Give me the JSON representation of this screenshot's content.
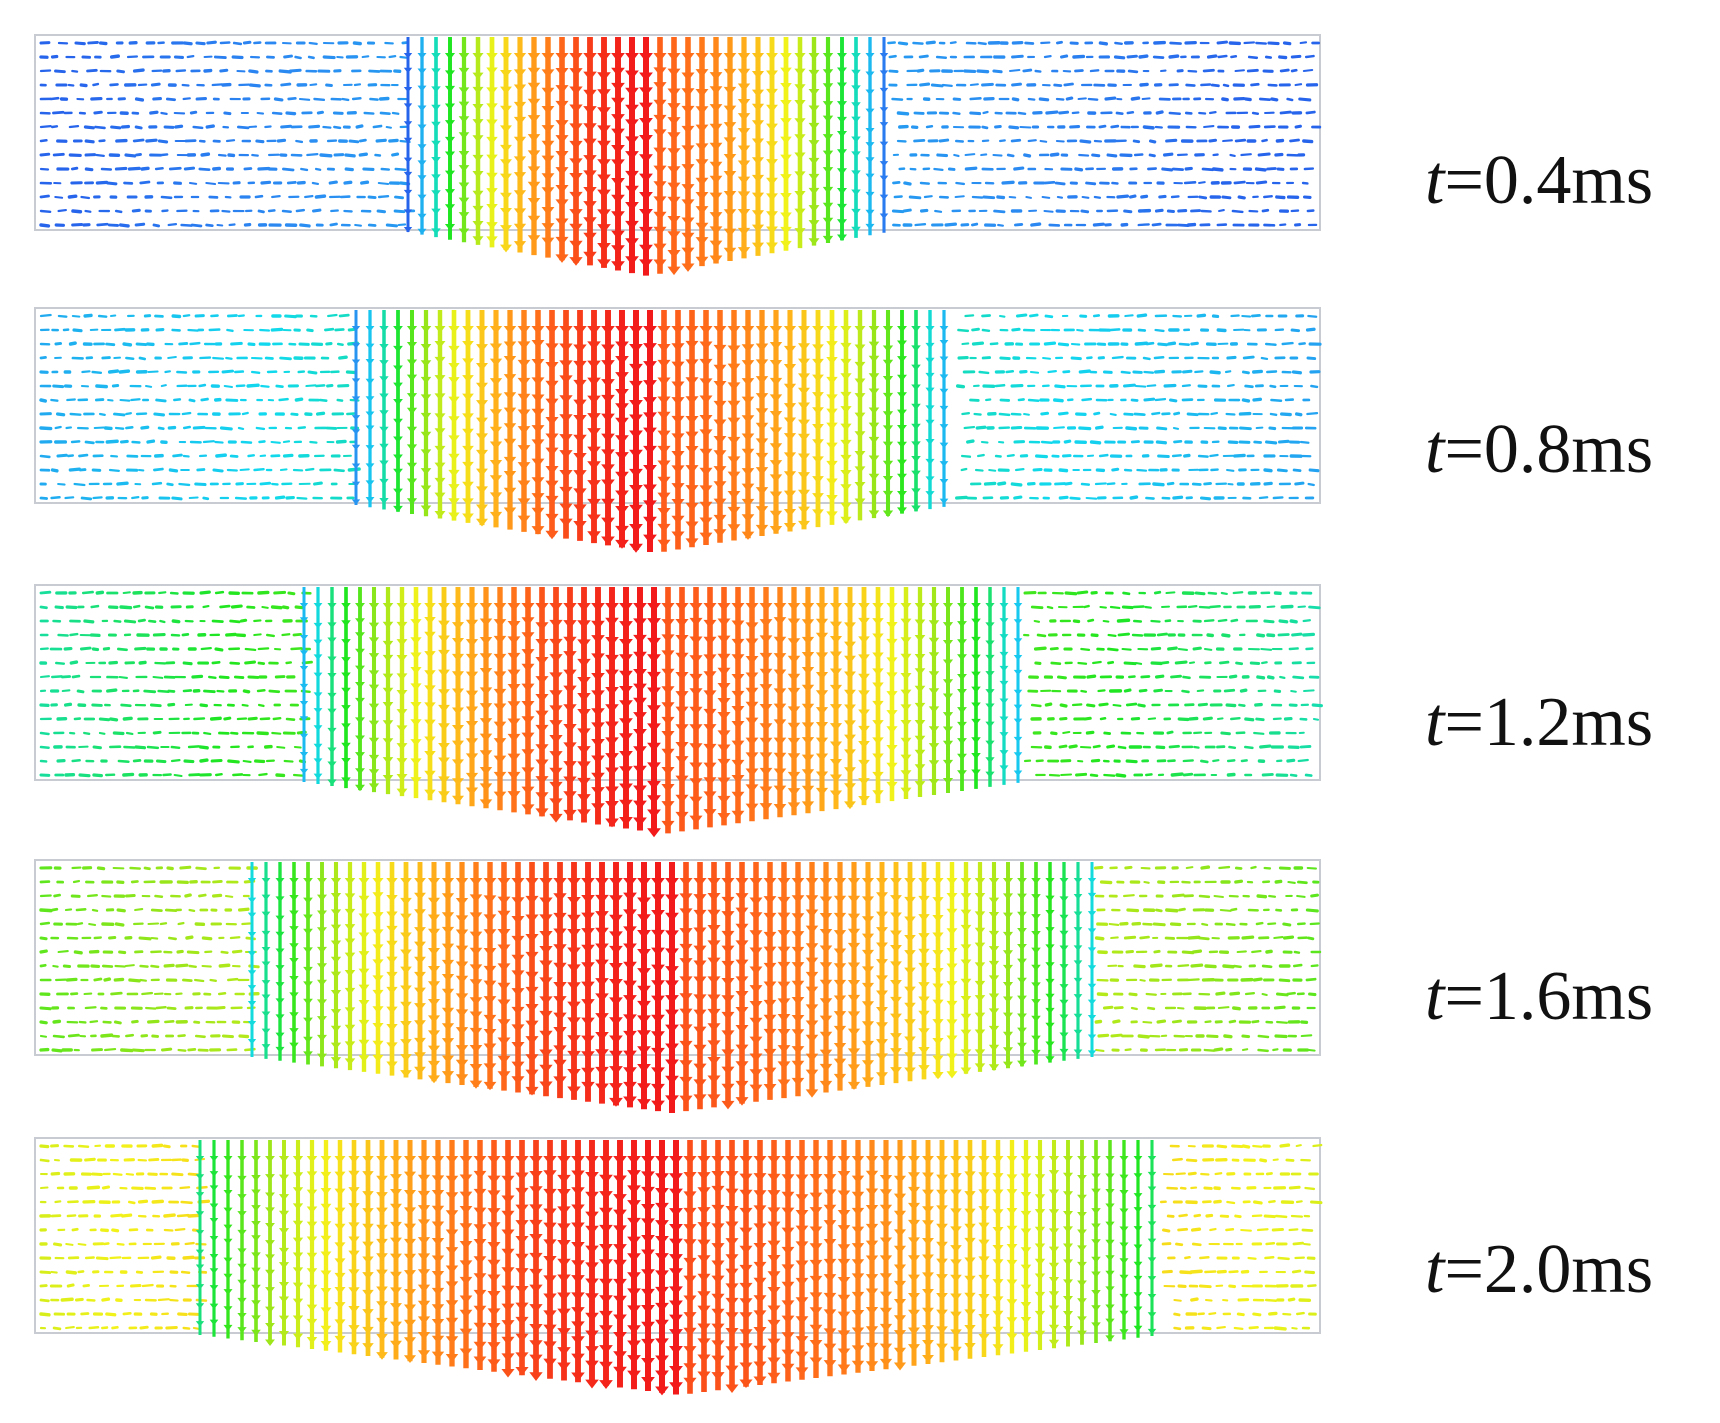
{
  "figure": {
    "panels": [
      {
        "time_var": "t",
        "time_rest": "=0.4ms",
        "step": 1
      },
      {
        "time_var": "t",
        "time_rest": "=0.8ms",
        "step": 2
      },
      {
        "time_var": "t",
        "time_rest": "=1.2ms",
        "step": 3
      },
      {
        "time_var": "t",
        "time_rest": "=1.6ms",
        "step": 4
      },
      {
        "time_var": "t",
        "time_rest": "=2.0ms",
        "step": 5
      }
    ],
    "colormap": [
      "#1f1fe0",
      "#2b8bf2",
      "#11d9ee",
      "#1fe61f",
      "#9be61a",
      "#f2f21a",
      "#ffb31a",
      "#ff6a1a",
      "#f21a1a"
    ],
    "frame_color": "#c8ccd2"
  }
}
